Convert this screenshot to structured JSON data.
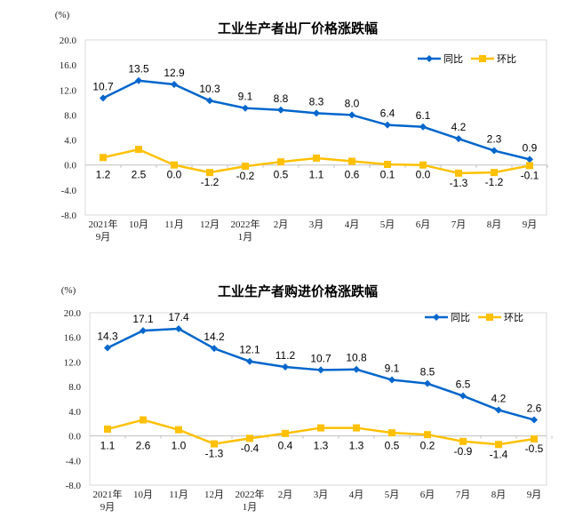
{
  "chart_data": [
    {
      "type": "line",
      "title": "工业生产者出厂价格涨跌幅",
      "ylabel": "(%)",
      "ylim": [
        -8,
        20
      ],
      "yticks": [
        "20.0",
        "16.0",
        "12.0",
        "8.0",
        "4.0",
        "0.0",
        "-4.0",
        "-8.0"
      ],
      "categories": [
        [
          "2021年",
          "9月"
        ],
        [
          "10月"
        ],
        [
          "11月"
        ],
        [
          "12月"
        ],
        [
          "2022年",
          "1月"
        ],
        [
          "2月"
        ],
        [
          "3月"
        ],
        [
          "4月"
        ],
        [
          "5月"
        ],
        [
          "6月"
        ],
        [
          "7月"
        ],
        [
          "8月"
        ],
        [
          "9月"
        ]
      ],
      "legend_position": "top-right",
      "series": [
        {
          "name": "同比",
          "color": "#0066cc",
          "values": [
            10.7,
            13.5,
            12.9,
            10.3,
            9.1,
            8.8,
            8.3,
            8.0,
            6.4,
            6.1,
            4.2,
            2.3,
            0.9
          ]
        },
        {
          "name": "环比",
          "color": "#ffc000",
          "values": [
            1.2,
            2.5,
            0.0,
            -1.2,
            -0.2,
            0.5,
            1.1,
            0.6,
            0.1,
            0.0,
            -1.3,
            -1.2,
            -0.1
          ]
        }
      ]
    },
    {
      "type": "line",
      "title": "工业生产者购进价格涨跌幅",
      "ylabel": "(%)",
      "ylim": [
        -8,
        20
      ],
      "yticks": [
        "20.0",
        "16.0",
        "12.0",
        "8.0",
        "4.0",
        "0.0",
        "-4.0",
        "-8.0"
      ],
      "categories": [
        [
          "2021年",
          "9月"
        ],
        [
          "10月"
        ],
        [
          "11月"
        ],
        [
          "12月"
        ],
        [
          "2022年",
          "1月"
        ],
        [
          "2月"
        ],
        [
          "3月"
        ],
        [
          "4月"
        ],
        [
          "5月"
        ],
        [
          "6月"
        ],
        [
          "7月"
        ],
        [
          "8月"
        ],
        [
          "9月"
        ]
      ],
      "legend_position": "top-right",
      "series": [
        {
          "name": "同比",
          "color": "#0066cc",
          "values": [
            14.3,
            17.1,
            17.4,
            14.2,
            12.1,
            11.2,
            10.7,
            10.8,
            9.1,
            8.5,
            6.5,
            4.2,
            2.6
          ]
        },
        {
          "name": "环比",
          "color": "#ffc000",
          "values": [
            1.1,
            2.6,
            1.0,
            -1.3,
            -0.4,
            0.4,
            1.3,
            1.3,
            0.5,
            0.2,
            -0.9,
            -1.4,
            -0.5
          ]
        }
      ]
    }
  ]
}
